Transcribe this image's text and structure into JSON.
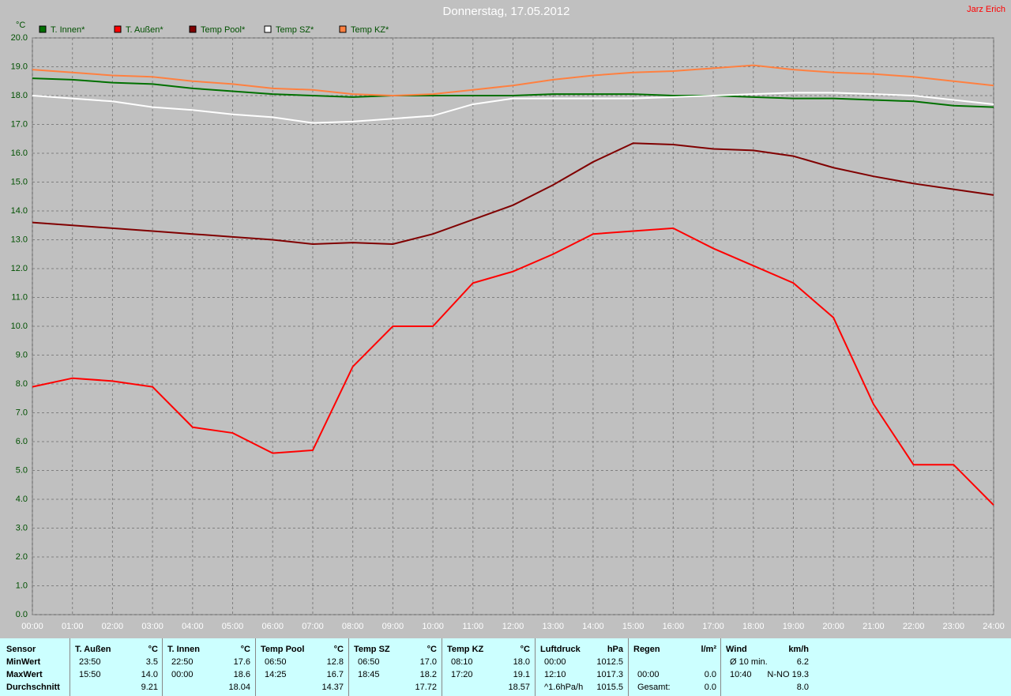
{
  "chart_data": {
    "type": "line",
    "title": "Donnerstag, 17.05.2012",
    "author": "Jarz Erich",
    "y_label": "°C",
    "x": [
      0,
      1,
      2,
      3,
      4,
      5,
      6,
      7,
      8,
      9,
      10,
      11,
      12,
      13,
      14,
      15,
      16,
      17,
      18,
      19,
      20,
      21,
      22,
      23,
      24
    ],
    "xlim": [
      0,
      24
    ],
    "xticks": [
      {
        "value": 0,
        "label": "00:00"
      },
      {
        "value": 1,
        "label": "01:00"
      },
      {
        "value": 2,
        "label": "02:00"
      },
      {
        "value": 3,
        "label": "03:00"
      },
      {
        "value": 4,
        "label": "04:00"
      },
      {
        "value": 5,
        "label": "05:00"
      },
      {
        "value": 6,
        "label": "06:00"
      },
      {
        "value": 7,
        "label": "07:00"
      },
      {
        "value": 8,
        "label": "08:00"
      },
      {
        "value": 9,
        "label": "09:00"
      },
      {
        "value": 10,
        "label": "10:00"
      },
      {
        "value": 11,
        "label": "11:00"
      },
      {
        "value": 12,
        "label": "12:00"
      },
      {
        "value": 13,
        "label": "13:00"
      },
      {
        "value": 14,
        "label": "14:00"
      },
      {
        "value": 15,
        "label": "15:00"
      },
      {
        "value": 16,
        "label": "16:00"
      },
      {
        "value": 17,
        "label": "17:00"
      },
      {
        "value": 18,
        "label": "18:00"
      },
      {
        "value": 19,
        "label": "19:00"
      },
      {
        "value": 20,
        "label": "20:00"
      },
      {
        "value": 21,
        "label": "21:00"
      },
      {
        "value": 22,
        "label": "22:00"
      },
      {
        "value": 23,
        "label": "23:00"
      },
      {
        "value": 24,
        "label": "24:00"
      }
    ],
    "ylim": [
      0,
      20
    ],
    "yticks": [
      {
        "value": 0,
        "label": "0.0"
      },
      {
        "value": 1,
        "label": "1.0"
      },
      {
        "value": 2,
        "label": "2.0"
      },
      {
        "value": 3,
        "label": "3.0"
      },
      {
        "value": 4,
        "label": "4.0"
      },
      {
        "value": 5,
        "label": "5.0"
      },
      {
        "value": 6,
        "label": "6.0"
      },
      {
        "value": 7,
        "label": "7.0"
      },
      {
        "value": 8,
        "label": "8.0"
      },
      {
        "value": 9,
        "label": "9.0"
      },
      {
        "value": 10,
        "label": "10.0"
      },
      {
        "value": 11,
        "label": "11.0"
      },
      {
        "value": 12,
        "label": "12.0"
      },
      {
        "value": 13,
        "label": "13.0"
      },
      {
        "value": 14,
        "label": "14.0"
      },
      {
        "value": 15,
        "label": "15.0"
      },
      {
        "value": 16,
        "label": "16.0"
      },
      {
        "value": 17,
        "label": "17.0"
      },
      {
        "value": 18,
        "label": "18.0"
      },
      {
        "value": 19,
        "label": "19.0"
      },
      {
        "value": 20,
        "label": "20.0"
      }
    ],
    "grid": true,
    "series": [
      {
        "name": "T. Innen*",
        "color": "#007000",
        "values": [
          18.6,
          18.55,
          18.45,
          18.4,
          18.25,
          18.15,
          18.05,
          18.0,
          17.95,
          18.0,
          18.0,
          18.0,
          18.0,
          18.05,
          18.05,
          18.05,
          18.0,
          18.0,
          17.95,
          17.9,
          17.9,
          17.85,
          17.8,
          17.65,
          17.6
        ]
      },
      {
        "name": "T. Außen*",
        "color": "#ff0000",
        "values": [
          7.9,
          8.2,
          8.1,
          7.9,
          6.5,
          6.3,
          5.6,
          5.7,
          8.6,
          10.0,
          10.0,
          11.5,
          11.9,
          12.5,
          13.2,
          13.3,
          13.4,
          12.7,
          12.1,
          11.5,
          10.3,
          7.3,
          5.2,
          5.2,
          3.8
        ]
      },
      {
        "name": "Temp Pool*",
        "color": "#800000",
        "values": [
          13.6,
          13.5,
          13.4,
          13.3,
          13.2,
          13.1,
          13.0,
          12.85,
          12.9,
          12.85,
          13.2,
          13.7,
          14.2,
          14.9,
          15.7,
          16.35,
          16.3,
          16.15,
          16.1,
          15.9,
          15.5,
          15.2,
          14.95,
          14.75,
          14.55
        ]
      },
      {
        "name": "Temp SZ*",
        "color": "#ffffff",
        "values": [
          18.0,
          17.9,
          17.8,
          17.6,
          17.5,
          17.35,
          17.25,
          17.05,
          17.1,
          17.2,
          17.3,
          17.7,
          17.9,
          17.9,
          17.9,
          17.9,
          17.95,
          18.0,
          18.05,
          18.1,
          18.1,
          18.05,
          18.0,
          17.85,
          17.7
        ]
      },
      {
        "name": "Temp KZ*",
        "color": "#ff8040",
        "values": [
          18.9,
          18.8,
          18.7,
          18.65,
          18.5,
          18.4,
          18.25,
          18.2,
          18.05,
          18.0,
          18.05,
          18.2,
          18.35,
          18.55,
          18.7,
          18.8,
          18.85,
          18.95,
          19.05,
          18.9,
          18.8,
          18.75,
          18.65,
          18.5,
          18.35
        ]
      }
    ]
  },
  "table": {
    "header": {
      "label": "Sensor",
      "groups": [
        [
          "T. Außen",
          "°C"
        ],
        [
          "T. Innen",
          "°C"
        ],
        [
          "Temp Pool",
          "°C"
        ],
        [
          "Temp SZ",
          "°C"
        ],
        [
          "Temp KZ",
          "°C"
        ],
        [
          "Luftdruck",
          "hPa"
        ],
        [
          "Regen",
          "l/m²"
        ],
        [
          "Wind",
          "km/h"
        ]
      ]
    },
    "rows": [
      {
        "label": "MinWert",
        "cells": [
          [
            "23:50",
            "3.5"
          ],
          [
            "22:50",
            "17.6"
          ],
          [
            "06:50",
            "12.8"
          ],
          [
            "06:50",
            "17.0"
          ],
          [
            "08:10",
            "18.0"
          ],
          [
            "00:00",
            "1012.5"
          ],
          [
            null,
            null
          ],
          [
            "Ø 10 min.",
            "6.2"
          ]
        ]
      },
      {
        "label": "MaxWert",
        "cells": [
          [
            "15:50",
            "14.0"
          ],
          [
            "00:00",
            "18.6"
          ],
          [
            "14:25",
            "16.7"
          ],
          [
            "18:45",
            "18.2"
          ],
          [
            "17:20",
            "19.1"
          ],
          [
            "12:10",
            "1017.3"
          ],
          [
            "00:00",
            "0.0"
          ],
          [
            "10:40",
            "N-NO 19.3"
          ]
        ]
      },
      {
        "label": "Durchschnitt",
        "cells": [
          [
            null,
            "9.21"
          ],
          [
            null,
            "18.04"
          ],
          [
            null,
            "14.37"
          ],
          [
            null,
            "17.72"
          ],
          [
            null,
            "18.57"
          ],
          [
            "^1.6hPa/h",
            "1015.5"
          ],
          [
            "Gesamt:",
            "0.0"
          ],
          [
            null,
            "8.0"
          ]
        ]
      }
    ]
  }
}
